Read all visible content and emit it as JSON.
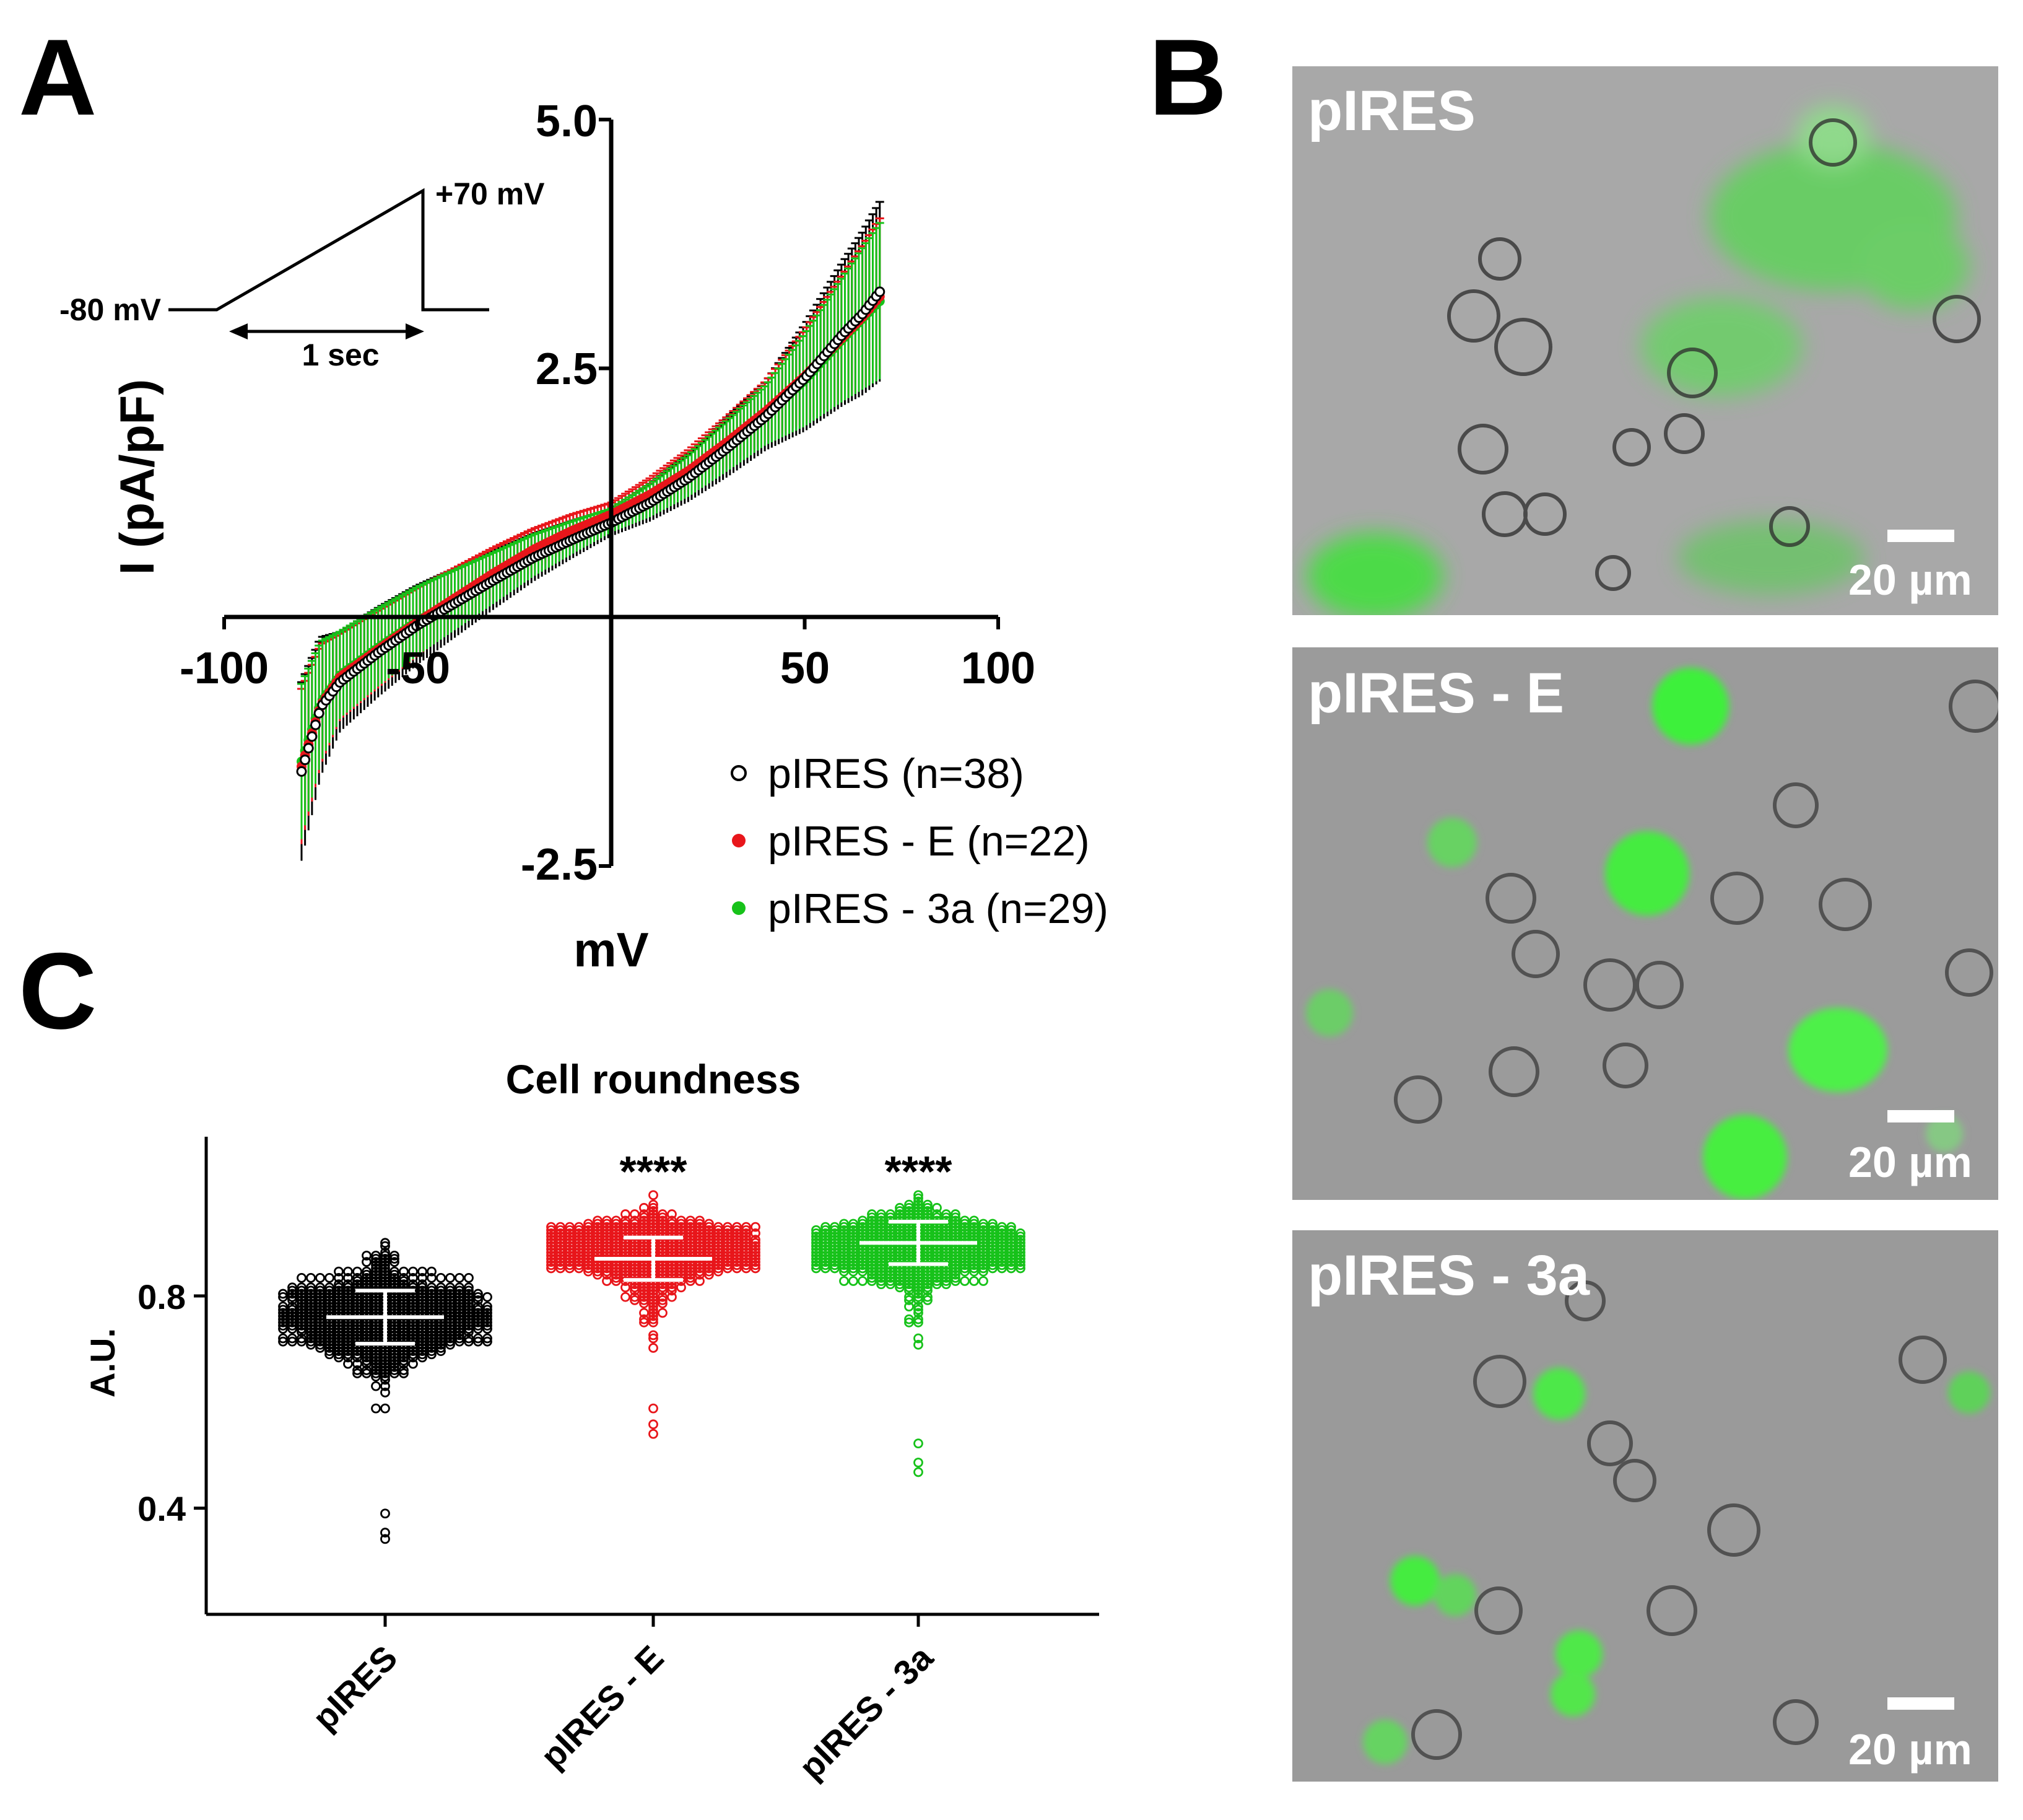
{
  "panels": {
    "a": "A",
    "b": "B",
    "c": "C"
  },
  "chart_data": [
    {
      "id": "iv",
      "type": "line",
      "title": "",
      "xlabel": "mV",
      "ylabel": "I (pA/pF)",
      "xlim": [
        -100,
        100
      ],
      "ylim": [
        -2.5,
        5.0
      ],
      "x_ticks": [
        "-100",
        "-50",
        "50",
        "100"
      ],
      "y_ticks": [
        "5.0",
        "2.5",
        "-2.5"
      ],
      "protocol": {
        "start": "-80 mV",
        "end": "+70 mV",
        "duration": "1 sec"
      },
      "legend_position": "bottom-right",
      "series": [
        {
          "name": "pIRES (n=38)",
          "color": "#000000",
          "x": [
            -80,
            -75,
            -70,
            -60,
            -50,
            -40,
            -30,
            -20,
            -10,
            0,
            10,
            20,
            30,
            40,
            50,
            60,
            65,
            70
          ],
          "y": [
            -1.55,
            -0.9,
            -0.65,
            -0.35,
            -0.08,
            0.15,
            0.38,
            0.6,
            0.78,
            0.95,
            1.15,
            1.4,
            1.7,
            2.02,
            2.4,
            2.85,
            3.05,
            3.3
          ]
        },
        {
          "name": "pIRES - E (n=22)",
          "color": "#e8161b",
          "x": [
            -80,
            -75,
            -70,
            -60,
            -50,
            -40,
            -30,
            -20,
            -10,
            0,
            10,
            20,
            30,
            40,
            50,
            60,
            65,
            70
          ],
          "y": [
            -1.5,
            -0.88,
            -0.6,
            -0.32,
            -0.05,
            0.2,
            0.45,
            0.68,
            0.87,
            1.03,
            1.23,
            1.47,
            1.76,
            2.07,
            2.42,
            2.82,
            3.02,
            3.25
          ]
        },
        {
          "name": "pIRES - 3a (n=29)",
          "color": "#17c21a",
          "x": [
            -80,
            -75,
            -70,
            -60,
            -50,
            -40,
            -30,
            -20,
            -10,
            0,
            10,
            20,
            30,
            40,
            50,
            60,
            65,
            70
          ],
          "y": [
            -1.45,
            -0.85,
            -0.58,
            -0.3,
            -0.04,
            0.18,
            0.4,
            0.62,
            0.8,
            0.97,
            1.17,
            1.42,
            1.72,
            2.03,
            2.38,
            2.8,
            3.0,
            3.2
          ]
        }
      ]
    },
    {
      "id": "roundness",
      "type": "scatter",
      "title": "Cell roundness",
      "ylabel": "A.U.",
      "ylim": [
        0.2,
        1.1
      ],
      "y_ticks": [
        "0.8",
        "0.4"
      ],
      "categories": [
        "pIRES",
        "pIRES - E",
        "pIRES - 3a"
      ],
      "annotations": [
        "",
        "****",
        "****"
      ],
      "series": [
        {
          "name": "",
          "color": "#000000",
          "mean": 0.76,
          "sd_low": 0.71,
          "sd_high": 0.81,
          "min": 0.34,
          "max": 0.97,
          "mode": 0.77
        },
        {
          "name": "",
          "color": "#e8161b",
          "mean": 0.87,
          "sd_low": 0.83,
          "sd_high": 0.91,
          "min": 0.54,
          "max": 0.99,
          "mode": 0.89
        },
        {
          "name": "",
          "color": "#17c21a",
          "mean": 0.9,
          "sd_low": 0.86,
          "sd_high": 0.94,
          "min": 0.47,
          "max": 0.99,
          "mode": 0.9
        }
      ]
    }
  ],
  "micrographs": [
    {
      "label": "pIRES",
      "scale": "20 µm"
    },
    {
      "label": "pIRES - E",
      "scale": "20 µm"
    },
    {
      "label": "pIRES - 3a",
      "scale": "20 µm"
    }
  ]
}
